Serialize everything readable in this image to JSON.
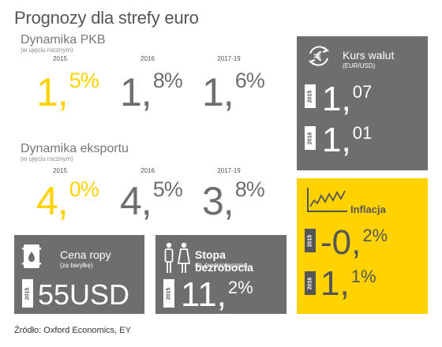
{
  "title": "Prognozy dla strefy euro",
  "gdp": {
    "title": "Dynamika PKB",
    "subtitle": "(w ujęciu rocznym)",
    "years": [
      "2015",
      "2016",
      "2017-19"
    ],
    "values": [
      {
        "int": "1,",
        "dec": "5%"
      },
      {
        "int": "1,",
        "dec": "8%"
      },
      {
        "int": "1,",
        "dec": "6%"
      }
    ]
  },
  "export": {
    "title": "Dynamika eksportu",
    "subtitle": "(w ujęciu rocznym)",
    "years": [
      "2015",
      "2016",
      "2017-19"
    ],
    "values": [
      {
        "int": "4,",
        "dec": "0%"
      },
      {
        "int": "4,",
        "dec": "5%"
      },
      {
        "int": "3,",
        "dec": "8%"
      }
    ]
  },
  "fx": {
    "title": "Kurs walut",
    "subtitle": "(EUR/USD)",
    "icon": "euro-exchange-icon",
    "rows": [
      {
        "year": "2015",
        "int": "1,",
        "dec": "07"
      },
      {
        "year": "2016",
        "int": "1,",
        "dec": "01"
      }
    ]
  },
  "inflation": {
    "title": "Inflacja",
    "icon": "line-chart-icon",
    "rows": [
      {
        "year": "2015",
        "int": "-0,",
        "dec": "2%"
      },
      {
        "year": "2016",
        "int": "1,",
        "dec": "1%"
      }
    ]
  },
  "oil": {
    "title": "Cena ropy",
    "subtitle": "(za baryłkę)",
    "icon": "oil-barrel-icon",
    "year": "2015",
    "value": "55USD"
  },
  "unemployment": {
    "title": "Stopa bezrobocia",
    "subtitle": "(% średniorocznie)",
    "icon": "people-icon",
    "year": "2015",
    "int": "11,",
    "dec": "2%"
  },
  "source": "Źródło: Oxford Economics, EY",
  "colors": {
    "accent": "#ffd200",
    "panel_grey": "#6e6e6e",
    "text_grey": "#6e6e6e"
  }
}
